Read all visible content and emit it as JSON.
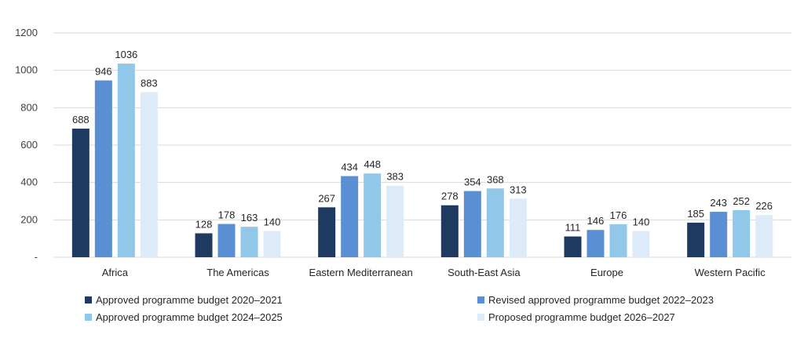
{
  "chart_data": {
    "type": "bar",
    "categories": [
      "Africa",
      "The Americas",
      "Eastern Mediterranean",
      "South-East Asia",
      "Europe",
      "Western Pacific"
    ],
    "series": [
      {
        "name": "Approved programme budget 2020–2021",
        "color": "#1f3a60",
        "values": [
          688,
          128,
          267,
          278,
          111,
          185
        ]
      },
      {
        "name": "Revised approved programme budget 2022–2023",
        "color": "#5b8fd3",
        "values": [
          946,
          178,
          434,
          354,
          146,
          243
        ]
      },
      {
        "name": "Approved programme budget 2024–2025",
        "color": "#91c8ea",
        "values": [
          1036,
          163,
          448,
          368,
          176,
          252
        ]
      },
      {
        "name": "Proposed programme budget 2026–2027",
        "color": "#dcebf7",
        "values": [
          883,
          140,
          383,
          313,
          140,
          226
        ]
      }
    ],
    "y_ticks": [
      "-",
      "200",
      "400",
      "600",
      "800",
      "1000",
      "1200"
    ],
    "ylim": [
      0,
      1200
    ],
    "grid": true,
    "legend_position": "bottom"
  }
}
